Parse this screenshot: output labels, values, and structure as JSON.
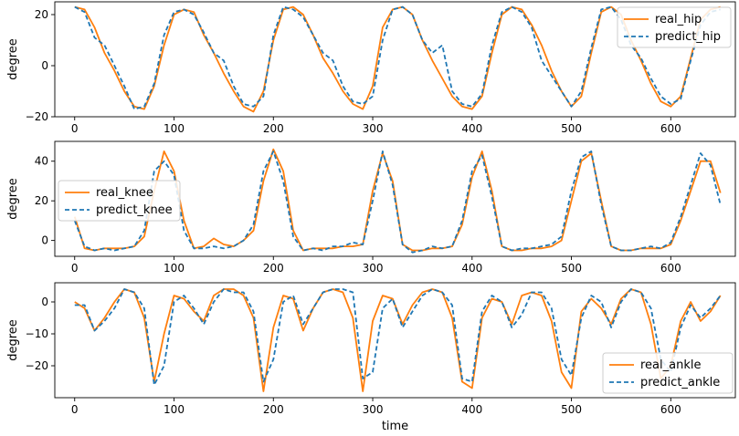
{
  "chart_data": [
    {
      "type": "line",
      "title": "",
      "xlabel": "",
      "ylabel": "degree",
      "xlim": [
        -20,
        665
      ],
      "ylim": [
        -20,
        25
      ],
      "xticks": [
        0,
        100,
        200,
        300,
        400,
        500,
        600
      ],
      "yticks": [
        -20,
        0,
        20
      ],
      "grid": false,
      "legend": "top-right",
      "colors": {
        "real": "#ff7f0e",
        "predict": "#1f77b4"
      },
      "x": [
        0,
        10,
        20,
        30,
        40,
        50,
        60,
        70,
        80,
        90,
        100,
        110,
        120,
        130,
        140,
        150,
        160,
        170,
        180,
        190,
        200,
        210,
        220,
        230,
        240,
        250,
        260,
        270,
        280,
        290,
        300,
        310,
        320,
        330,
        340,
        350,
        360,
        370,
        380,
        390,
        400,
        410,
        420,
        430,
        440,
        450,
        460,
        470,
        480,
        490,
        500,
        510,
        520,
        530,
        540,
        550,
        560,
        570,
        580,
        590,
        600,
        610,
        620,
        630,
        640,
        650
      ],
      "series": [
        {
          "name": "real_hip",
          "style": "solid",
          "values": [
            23,
            22,
            15,
            5,
            -2,
            -10,
            -16,
            -17,
            -8,
            8,
            20,
            22,
            21,
            12,
            5,
            -3,
            -10,
            -16,
            -18,
            -10,
            10,
            22,
            23,
            20,
            12,
            3,
            -3,
            -10,
            -15,
            -17,
            -8,
            15,
            22,
            23,
            20,
            10,
            2,
            -5,
            -12,
            -16,
            -17,
            -12,
            5,
            20,
            23,
            22,
            16,
            8,
            -2,
            -10,
            -16,
            -12,
            5,
            21,
            23,
            20,
            10,
            2,
            -7,
            -14,
            -16,
            -12,
            3,
            18,
            22,
            23
          ]
        },
        {
          "name": "predict_hip",
          "style": "dashed",
          "values": [
            23,
            21,
            11,
            8,
            0,
            -8,
            -17,
            -16,
            -7,
            12,
            21,
            22,
            20,
            13,
            5,
            2,
            -8,
            -15,
            -16,
            -12,
            12,
            23,
            22,
            19,
            12,
            5,
            2,
            -8,
            -14,
            -15,
            -12,
            10,
            22,
            23,
            20,
            10,
            5,
            8,
            -10,
            -15,
            -16,
            -11,
            8,
            21,
            23,
            21,
            15,
            2,
            -4,
            -10,
            -16,
            -10,
            7,
            22,
            23,
            18,
            8,
            3,
            -5,
            -12,
            -15,
            -13,
            2,
            16,
            21,
            22
          ]
        }
      ]
    },
    {
      "type": "line",
      "title": "",
      "xlabel": "",
      "ylabel": "degree",
      "xlim": [
        -20,
        665
      ],
      "ylim": [
        -8,
        50
      ],
      "xticks": [
        0,
        100,
        200,
        300,
        400,
        500,
        600
      ],
      "yticks": [
        0,
        20,
        40
      ],
      "grid": false,
      "legend": "center-left",
      "colors": {
        "real": "#ff7f0e",
        "predict": "#1f77b4"
      },
      "x": [
        0,
        10,
        20,
        30,
        40,
        50,
        60,
        70,
        80,
        90,
        100,
        110,
        120,
        130,
        140,
        150,
        160,
        170,
        180,
        190,
        200,
        210,
        220,
        230,
        240,
        250,
        260,
        270,
        280,
        290,
        300,
        310,
        320,
        330,
        340,
        350,
        360,
        370,
        380,
        390,
        400,
        410,
        420,
        430,
        440,
        450,
        460,
        470,
        480,
        490,
        500,
        510,
        520,
        530,
        540,
        550,
        560,
        570,
        580,
        590,
        600,
        610,
        620,
        630,
        640,
        650
      ],
      "series": [
        {
          "name": "real_knee",
          "style": "solid",
          "values": [
            12,
            -4,
            -5,
            -4,
            -4,
            -4,
            -3,
            2,
            25,
            45,
            35,
            10,
            -4,
            -3,
            1,
            -2,
            -3,
            0,
            5,
            30,
            46,
            35,
            5,
            -5,
            -4,
            -4,
            -4,
            -3,
            -3,
            -2,
            25,
            44,
            30,
            -2,
            -5,
            -5,
            -4,
            -4,
            -3,
            8,
            32,
            45,
            25,
            -3,
            -5,
            -5,
            -4,
            -4,
            -3,
            0,
            20,
            40,
            44,
            20,
            -3,
            -5,
            -5,
            -4,
            -4,
            -4,
            -2,
            10,
            25,
            40,
            40,
            24
          ]
        },
        {
          "name": "predict_knee",
          "style": "dashed",
          "values": [
            10,
            -3,
            -5,
            -4,
            -5,
            -4,
            -3,
            5,
            35,
            40,
            33,
            5,
            -4,
            -4,
            -3,
            -4,
            -3,
            0,
            8,
            35,
            45,
            30,
            2,
            -5,
            -4,
            -5,
            -3,
            -3,
            -1,
            -2,
            20,
            45,
            28,
            -2,
            -6,
            -5,
            -3,
            -4,
            -3,
            10,
            35,
            43,
            22,
            -3,
            -5,
            -4,
            -4,
            -3,
            -2,
            2,
            25,
            42,
            45,
            18,
            -3,
            -5,
            -5,
            -4,
            -3,
            -4,
            -1,
            12,
            28,
            44,
            38,
            18
          ]
        }
      ]
    },
    {
      "type": "line",
      "title": "",
      "xlabel": "time",
      "ylabel": "degree",
      "xlim": [
        -20,
        665
      ],
      "ylim": [
        -30,
        6
      ],
      "xticks": [
        0,
        100,
        200,
        300,
        400,
        500,
        600
      ],
      "yticks": [
        -20,
        -10,
        0
      ],
      "grid": false,
      "legend": "bottom-right",
      "colors": {
        "real": "#ff7f0e",
        "predict": "#1f77b4"
      },
      "x": [
        0,
        10,
        20,
        30,
        40,
        50,
        60,
        70,
        80,
        90,
        100,
        110,
        120,
        130,
        140,
        150,
        160,
        170,
        180,
        190,
        200,
        210,
        220,
        230,
        240,
        250,
        260,
        270,
        280,
        290,
        300,
        310,
        320,
        330,
        340,
        350,
        360,
        370,
        380,
        390,
        400,
        410,
        420,
        430,
        440,
        450,
        460,
        470,
        480,
        490,
        500,
        510,
        520,
        530,
        540,
        550,
        560,
        570,
        580,
        590,
        600,
        610,
        620,
        630,
        640,
        650
      ],
      "series": [
        {
          "name": "real_ankle",
          "style": "solid",
          "values": [
            0,
            -2,
            -9,
            -5,
            0,
            4,
            3,
            -5,
            -25,
            -10,
            2,
            1,
            -3,
            -6,
            2,
            4,
            4,
            2,
            -5,
            -28,
            -8,
            2,
            1,
            -9,
            -2,
            3,
            4,
            3,
            -5,
            -28,
            -6,
            2,
            1,
            -7,
            -1,
            3,
            4,
            3,
            -5,
            -25,
            -27,
            -5,
            1,
            0,
            -7,
            2,
            3,
            2,
            -6,
            -22,
            -27,
            -3,
            1,
            -2,
            -7,
            1,
            4,
            3,
            -7,
            -24,
            -20,
            -6,
            0,
            -6,
            -3,
            2
          ]
        },
        {
          "name": "predict_ankle",
          "style": "dashed",
          "values": [
            -1,
            -1,
            -9,
            -6,
            -2,
            4,
            3,
            -2,
            -26,
            -20,
            0,
            2,
            -2,
            -7,
            0,
            4,
            3,
            3,
            -3,
            -25,
            -18,
            0,
            2,
            -7,
            -2,
            3,
            4,
            4,
            3,
            -24,
            -22,
            -2,
            1,
            -8,
            -3,
            2,
            4,
            3,
            -1,
            -24,
            -25,
            -3,
            2,
            0,
            -8,
            -4,
            3,
            3,
            -2,
            -18,
            -23,
            -5,
            2,
            0,
            -8,
            0,
            4,
            3,
            -2,
            -18,
            -22,
            -8,
            -1,
            -5,
            -2,
            2
          ]
        }
      ]
    }
  ]
}
